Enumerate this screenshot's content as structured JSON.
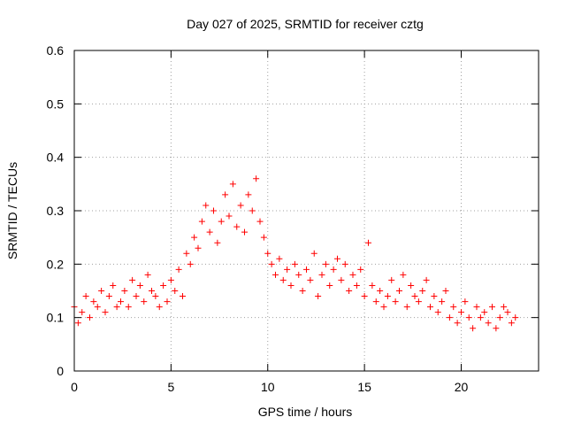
{
  "chart_data": {
    "type": "scatter",
    "title": "Day 027 of 2025, SRMTID for receiver cztg",
    "xlabel": "GPS time / hours",
    "ylabel": "SRMTID / TECUs",
    "xlim": [
      0,
      24
    ],
    "ylim": [
      0,
      0.6
    ],
    "xticks": [
      0,
      5,
      10,
      15,
      20
    ],
    "yticks": [
      0,
      0.1,
      0.2,
      0.3,
      0.4,
      0.5,
      0.6
    ],
    "xtick_labels": [
      "0",
      "5",
      "10",
      "15",
      "20"
    ],
    "ytick_labels": [
      "0",
      "0.1",
      "0.2",
      "0.3",
      "0.4",
      "0.5",
      "0.6"
    ],
    "grid": true,
    "marker": "plus",
    "color": "#ff0000",
    "series": [
      {
        "name": "SRMTID",
        "x": [
          0.0,
          0.2,
          0.4,
          0.6,
          0.8,
          1.0,
          1.2,
          1.4,
          1.6,
          1.8,
          2.0,
          2.2,
          2.4,
          2.6,
          2.8,
          3.0,
          3.2,
          3.4,
          3.6,
          3.8,
          4.0,
          4.2,
          4.4,
          4.6,
          4.8,
          5.0,
          5.2,
          5.4,
          5.6,
          5.8,
          6.0,
          6.2,
          6.4,
          6.6,
          6.8,
          7.0,
          7.2,
          7.4,
          7.6,
          7.8,
          8.0,
          8.2,
          8.4,
          8.6,
          8.8,
          9.0,
          9.2,
          9.4,
          9.6,
          9.8,
          10.0,
          10.2,
          10.4,
          10.6,
          10.8,
          11.0,
          11.2,
          11.4,
          11.6,
          11.8,
          12.0,
          12.2,
          12.4,
          12.6,
          12.8,
          13.0,
          13.2,
          13.4,
          13.6,
          13.8,
          14.0,
          14.2,
          14.4,
          14.6,
          14.8,
          15.0,
          15.2,
          15.4,
          15.6,
          15.8,
          16.0,
          16.2,
          16.4,
          16.6,
          16.8,
          17.0,
          17.2,
          17.4,
          17.6,
          17.8,
          18.0,
          18.2,
          18.4,
          18.6,
          18.8,
          19.0,
          19.2,
          19.4,
          19.6,
          19.8,
          20.0,
          20.2,
          20.4,
          20.6,
          20.8,
          21.0,
          21.2,
          21.4,
          21.6,
          21.8,
          22.0,
          22.2,
          22.4,
          22.6,
          22.8
        ],
        "y": [
          0.12,
          0.09,
          0.11,
          0.14,
          0.1,
          0.13,
          0.12,
          0.15,
          0.11,
          0.14,
          0.16,
          0.12,
          0.13,
          0.15,
          0.12,
          0.17,
          0.14,
          0.16,
          0.13,
          0.18,
          0.15,
          0.14,
          0.12,
          0.16,
          0.13,
          0.17,
          0.15,
          0.19,
          0.14,
          0.22,
          0.2,
          0.25,
          0.23,
          0.28,
          0.31,
          0.26,
          0.3,
          0.24,
          0.28,
          0.33,
          0.29,
          0.35,
          0.27,
          0.31,
          0.26,
          0.33,
          0.3,
          0.36,
          0.28,
          0.25,
          0.22,
          0.2,
          0.18,
          0.21,
          0.17,
          0.19,
          0.16,
          0.2,
          0.18,
          0.15,
          0.19,
          0.17,
          0.22,
          0.14,
          0.18,
          0.2,
          0.16,
          0.19,
          0.21,
          0.17,
          0.2,
          0.15,
          0.18,
          0.16,
          0.19,
          0.14,
          0.24,
          0.16,
          0.13,
          0.15,
          0.12,
          0.14,
          0.17,
          0.13,
          0.15,
          0.18,
          0.12,
          0.16,
          0.14,
          0.13,
          0.15,
          0.17,
          0.12,
          0.14,
          0.11,
          0.13,
          0.15,
          0.1,
          0.12,
          0.09,
          0.11,
          0.13,
          0.1,
          0.08,
          0.12,
          0.1,
          0.11,
          0.09,
          0.12,
          0.08,
          0.1,
          0.12,
          0.11,
          0.09,
          0.1
        ]
      }
    ]
  }
}
